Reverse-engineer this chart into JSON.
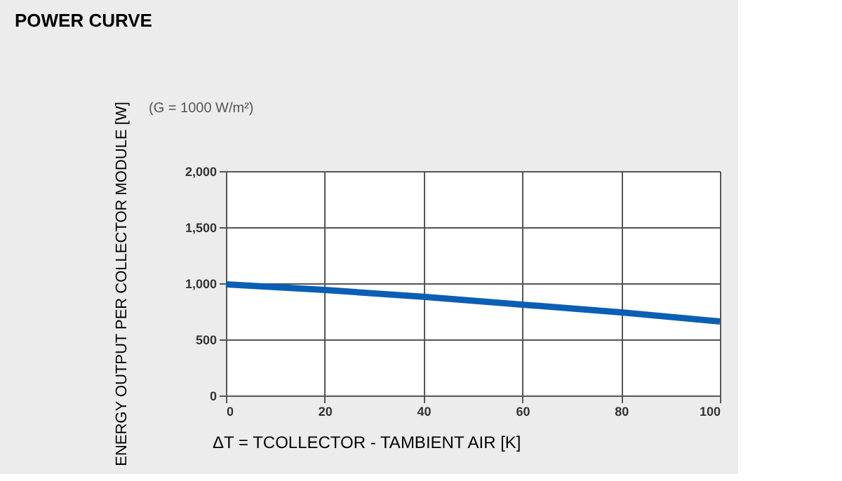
{
  "chart_data": {
    "type": "line",
    "title": "POWER CURVE",
    "xlabel": "ΔT = TCOLLECTOR - TAMBIENT AIR [K]",
    "ylabel": "ENERGY OUTPUT PER COLLECTOR MODULE [W]",
    "annotations": [
      "(G = 1000 W/m²)"
    ],
    "x": [
      0,
      20,
      40,
      60,
      80,
      100
    ],
    "series": [
      {
        "color": "#0a5fb4",
        "values": [
          990,
          940,
          880,
          810,
          740,
          660
        ]
      }
    ],
    "xlim": [
      0,
      100
    ],
    "xticks": [
      0,
      20,
      40,
      60,
      80,
      100
    ],
    "ylim": [
      0,
      2000
    ],
    "yticks": [
      0,
      500,
      {
        "value": 1000,
        "label": "1,000"
      },
      {
        "value": 1500,
        "label": "1,500"
      },
      {
        "value": 2000,
        "label": "2,000"
      }
    ],
    "grid": true,
    "marker": "none",
    "line_style": "solid",
    "legend": false
  }
}
